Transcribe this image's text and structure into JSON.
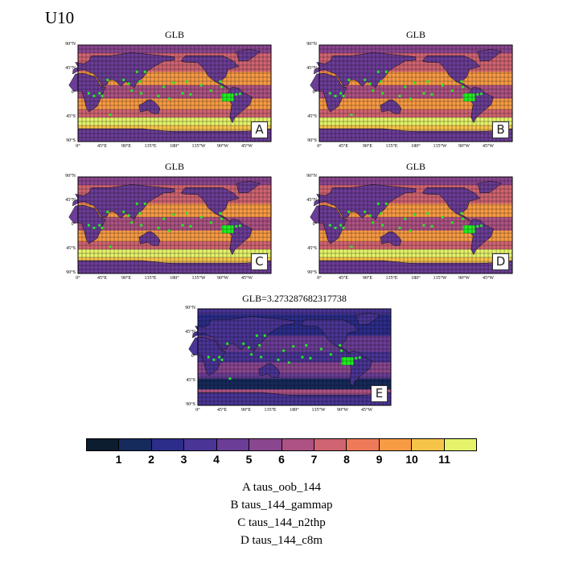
{
  "title": "U10",
  "panel_titles": [
    "GLB",
    "GLB",
    "GLB",
    "GLB",
    "GLB=3.273287682317738"
  ],
  "panel_badges": [
    "A",
    "B",
    "C",
    "D",
    "E"
  ],
  "lat_labels": [
    "90°N",
    "45°N",
    "0°",
    "45°S",
    "90°S"
  ],
  "lon_labels": [
    "0°",
    "45°E",
    "90°E",
    "135°E",
    "180°",
    "135°W",
    "90°W",
    "45°W"
  ],
  "legend": [
    "A  taus_oob_144",
    "B  taus_144_gammap",
    "C  taus_144_n2thp",
    "D  taus_144_c8m"
  ],
  "colors": {
    "marker": "#22ee22",
    "palette": [
      "#0b1d2e",
      "#162a5c",
      "#2c2d8a",
      "#4a3596",
      "#6b3d96",
      "#8b4690",
      "#ad5284",
      "#d06472",
      "#ee7a5a",
      "#f89b45",
      "#f7c44a",
      "#e4f36a"
    ]
  },
  "chart_data": {
    "type": "heatmap",
    "variable": "U10",
    "colorbar": {
      "ticks": [
        1,
        2,
        3,
        4,
        5,
        6,
        7,
        8,
        9,
        10,
        11
      ],
      "n_bins": 12
    },
    "panels": [
      {
        "id": "A",
        "title": "GLB",
        "series": "taus_oob_144"
      },
      {
        "id": "B",
        "title": "GLB",
        "series": "taus_144_gammap"
      },
      {
        "id": "C",
        "title": "GLB",
        "series": "taus_144_n2thp"
      },
      {
        "id": "D",
        "title": "GLB",
        "series": "taus_144_c8m"
      },
      {
        "id": "E",
        "title": "GLB=3.273287682317738",
        "glb_value": 3.273287682317738
      }
    ],
    "axes": {
      "y_ticks": [
        "90°N",
        "45°N",
        "0°",
        "45°S",
        "90°S"
      ],
      "x_ticks": [
        "0°",
        "45°E",
        "90°E",
        "135°E",
        "180°",
        "135°W",
        "90°W",
        "45°W"
      ],
      "lat_range": [
        -90,
        90
      ],
      "lon_range": [
        0,
        360
      ]
    },
    "grid": true
  }
}
